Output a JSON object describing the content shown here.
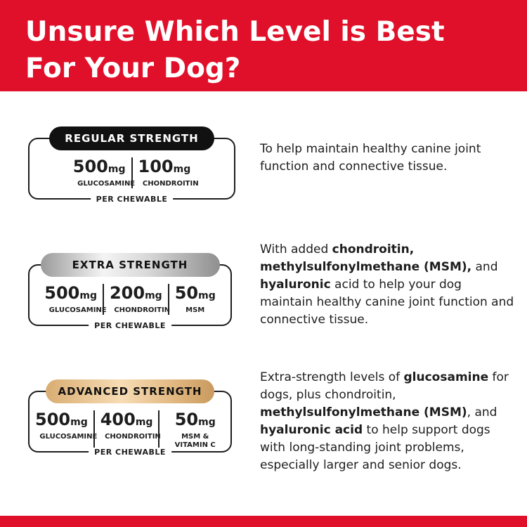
{
  "header": {
    "title": "Unsure Which Level is Best For Your Dog?"
  },
  "tiers": [
    {
      "badge": "REGULAR STRENGTH",
      "nutrients": [
        {
          "amount": "500",
          "unit": "mg",
          "name": "GLUCOSAMINE"
        },
        {
          "amount": "100",
          "unit": "mg",
          "name": "CHONDROITIN"
        }
      ],
      "footer": "PER CHEWABLE",
      "description": [
        {
          "text": "To help maintain healthy canine joint function and connective tissue.",
          "strong": false
        }
      ]
    },
    {
      "badge": "EXTRA STRENGTH",
      "nutrients": [
        {
          "amount": "500",
          "unit": "mg",
          "name": "GLUCOSAMINE"
        },
        {
          "amount": "200",
          "unit": "mg",
          "name": "CHONDROITIN"
        },
        {
          "amount": "50",
          "unit": "mg",
          "name": "MSM"
        }
      ],
      "footer": "PER CHEWABLE",
      "description": [
        {
          "text": "With added ",
          "strong": false
        },
        {
          "text": "chondroitin, methylsulfonylmethane (MSM),",
          "strong": true
        },
        {
          "text": " and ",
          "strong": false
        },
        {
          "text": "hyaluronic",
          "strong": true
        },
        {
          "text": " acid to help your dog maintain healthy canine joint function and connective tissue.",
          "strong": false
        }
      ]
    },
    {
      "badge": "ADVANCED STRENGTH",
      "nutrients": [
        {
          "amount": "500",
          "unit": "mg",
          "name": "GLUCOSAMINE"
        },
        {
          "amount": "400",
          "unit": "mg",
          "name": "CHONDROITIN"
        },
        {
          "amount": "50",
          "unit": "mg",
          "name": "MSM & VITAMIN C"
        }
      ],
      "footer": "PER CHEWABLE",
      "description": [
        {
          "text": "Extra-strength levels of ",
          "strong": false
        },
        {
          "text": "glucosamine",
          "strong": true
        },
        {
          "text": " for dogs, plus chondroitin, ",
          "strong": false
        },
        {
          "text": "methylsulfonylmethane (MSM)",
          "strong": true
        },
        {
          "text": ", and ",
          "strong": false
        },
        {
          "text": "hyaluronic acid",
          "strong": true
        },
        {
          "text": " to help support dogs with long-standing joint problems, especially larger and senior dogs.",
          "strong": false
        }
      ]
    }
  ]
}
